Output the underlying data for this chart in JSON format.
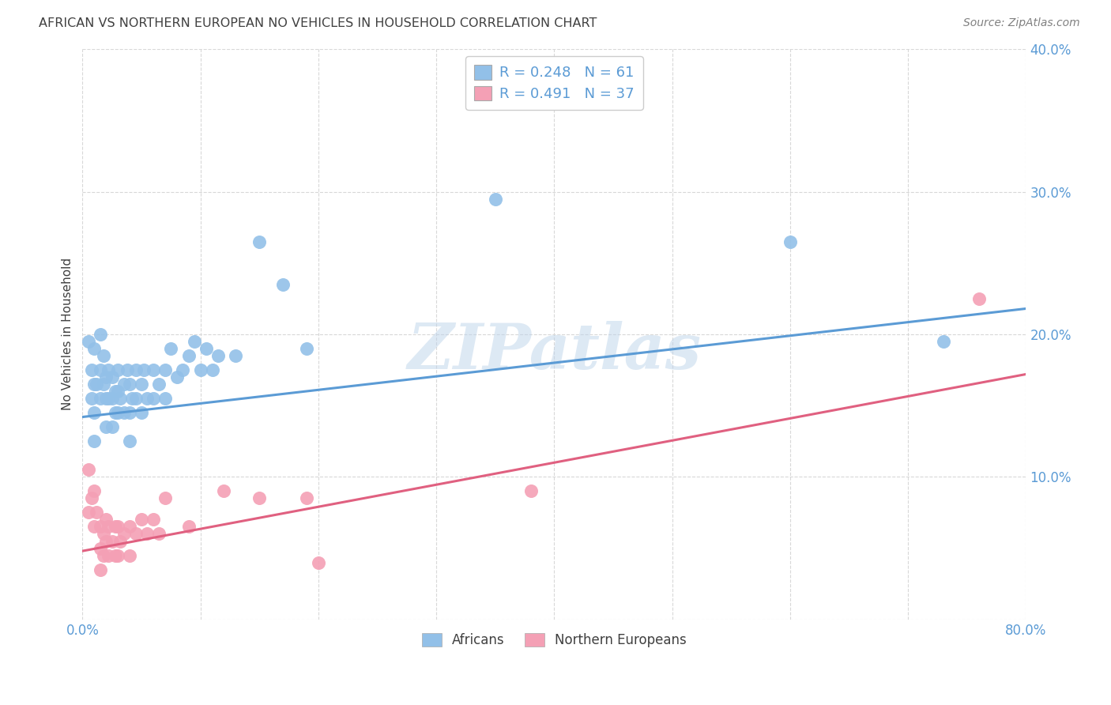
{
  "title": "AFRICAN VS NORTHERN EUROPEAN NO VEHICLES IN HOUSEHOLD CORRELATION CHART",
  "source": "Source: ZipAtlas.com",
  "ylabel": "No Vehicles in Household",
  "watermark": "ZIPatlas",
  "xlim": [
    0.0,
    0.8
  ],
  "ylim": [
    0.0,
    0.4
  ],
  "xticks": [
    0.0,
    0.1,
    0.2,
    0.3,
    0.4,
    0.5,
    0.6,
    0.7,
    0.8
  ],
  "yticks": [
    0.0,
    0.1,
    0.2,
    0.3,
    0.4
  ],
  "legend_african": "Africans",
  "legend_northern": "Northern Europeans",
  "R_african": 0.248,
  "N_african": 61,
  "R_northern": 0.491,
  "N_northern": 37,
  "color_african": "#92C0E8",
  "color_northern": "#F4A0B5",
  "color_african_line": "#5B9BD5",
  "color_northern_line": "#E06080",
  "color_title": "#404040",
  "color_source": "#808080",
  "color_tick": "#5B9BD5",
  "background_color": "#FFFFFF",
  "grid_color": "#D8D8D8",
  "african_x": [
    0.005,
    0.008,
    0.008,
    0.01,
    0.01,
    0.01,
    0.01,
    0.012,
    0.015,
    0.015,
    0.015,
    0.018,
    0.018,
    0.02,
    0.02,
    0.02,
    0.022,
    0.022,
    0.025,
    0.025,
    0.025,
    0.028,
    0.028,
    0.03,
    0.03,
    0.03,
    0.032,
    0.035,
    0.035,
    0.038,
    0.04,
    0.04,
    0.04,
    0.042,
    0.045,
    0.045,
    0.05,
    0.05,
    0.052,
    0.055,
    0.06,
    0.06,
    0.065,
    0.07,
    0.07,
    0.075,
    0.08,
    0.085,
    0.09,
    0.095,
    0.1,
    0.105,
    0.11,
    0.115,
    0.13,
    0.15,
    0.17,
    0.19,
    0.35,
    0.6,
    0.73
  ],
  "african_y": [
    0.195,
    0.175,
    0.155,
    0.19,
    0.165,
    0.145,
    0.125,
    0.165,
    0.2,
    0.175,
    0.155,
    0.185,
    0.165,
    0.17,
    0.155,
    0.135,
    0.175,
    0.155,
    0.17,
    0.155,
    0.135,
    0.16,
    0.145,
    0.175,
    0.16,
    0.145,
    0.155,
    0.165,
    0.145,
    0.175,
    0.165,
    0.145,
    0.125,
    0.155,
    0.175,
    0.155,
    0.165,
    0.145,
    0.175,
    0.155,
    0.175,
    0.155,
    0.165,
    0.175,
    0.155,
    0.19,
    0.17,
    0.175,
    0.185,
    0.195,
    0.175,
    0.19,
    0.175,
    0.185,
    0.185,
    0.265,
    0.235,
    0.19,
    0.295,
    0.265,
    0.195
  ],
  "northern_x": [
    0.005,
    0.005,
    0.008,
    0.01,
    0.01,
    0.012,
    0.015,
    0.015,
    0.015,
    0.018,
    0.018,
    0.02,
    0.02,
    0.022,
    0.022,
    0.025,
    0.028,
    0.028,
    0.03,
    0.03,
    0.032,
    0.035,
    0.04,
    0.04,
    0.045,
    0.05,
    0.055,
    0.06,
    0.065,
    0.07,
    0.09,
    0.12,
    0.15,
    0.19,
    0.2,
    0.38,
    0.76
  ],
  "northern_y": [
    0.105,
    0.075,
    0.085,
    0.09,
    0.065,
    0.075,
    0.065,
    0.05,
    0.035,
    0.06,
    0.045,
    0.07,
    0.055,
    0.065,
    0.045,
    0.055,
    0.065,
    0.045,
    0.065,
    0.045,
    0.055,
    0.06,
    0.065,
    0.045,
    0.06,
    0.07,
    0.06,
    0.07,
    0.06,
    0.085,
    0.065,
    0.09,
    0.085,
    0.085,
    0.04,
    0.09,
    0.225
  ],
  "blue_line_x0": 0.0,
  "blue_line_y0": 0.142,
  "blue_line_x1": 0.8,
  "blue_line_y1": 0.218,
  "pink_line_x0": 0.0,
  "pink_line_y0": 0.048,
  "pink_line_x1": 0.8,
  "pink_line_y1": 0.172
}
